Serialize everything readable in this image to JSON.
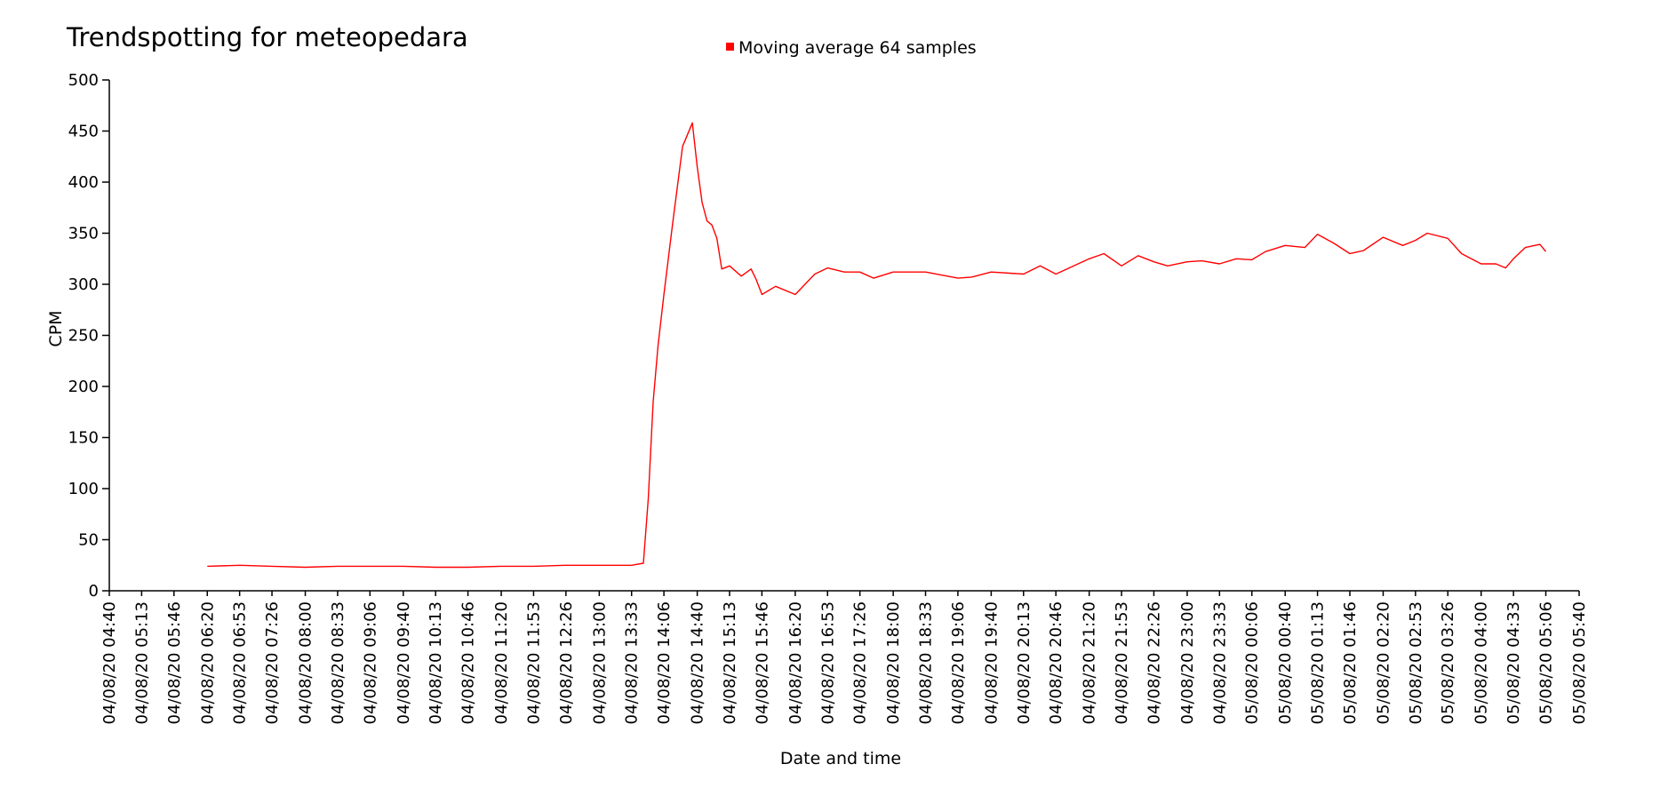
{
  "chart_data": {
    "type": "line",
    "title": "Trendspotting for meteopedara",
    "xlabel": "Date and time",
    "ylabel": "CPM",
    "ylim": [
      0,
      500
    ],
    "yticks": [
      0,
      50,
      100,
      150,
      200,
      250,
      300,
      350,
      400,
      450,
      500
    ],
    "xticks": [
      "04/08/20 04:40",
      "04/08/20 05:13",
      "04/08/20 05:46",
      "04/08/20 06:20",
      "04/08/20 06:53",
      "04/08/20 07:26",
      "04/08/20 08:00",
      "04/08/20 08:33",
      "04/08/20 09:06",
      "04/08/20 09:40",
      "04/08/20 10:13",
      "04/08/20 10:46",
      "04/08/20 11:20",
      "04/08/20 11:53",
      "04/08/20 12:26",
      "04/08/20 13:00",
      "04/08/20 13:33",
      "04/08/20 14:06",
      "04/08/20 14:40",
      "04/08/20 15:13",
      "04/08/20 15:46",
      "04/08/20 16:20",
      "04/08/20 16:53",
      "04/08/20 17:26",
      "04/08/20 18:00",
      "04/08/20 18:33",
      "04/08/20 19:06",
      "04/08/20 19:40",
      "04/08/20 20:13",
      "04/08/20 20:46",
      "04/08/20 21:20",
      "04/08/20 21:53",
      "04/08/20 22:26",
      "04/08/20 23:00",
      "04/08/20 23:33",
      "05/08/20 00:06",
      "05/08/20 00:40",
      "05/08/20 01:13",
      "05/08/20 01:46",
      "05/08/20 02:20",
      "05/08/20 02:53",
      "05/08/20 03:26",
      "05/08/20 04:00",
      "05/08/20 04:33",
      "05/08/20 05:06",
      "05/08/20 05:40"
    ],
    "legend": "top-center",
    "grid": false,
    "series": [
      {
        "name": "Moving average 64 samples",
        "color": "#ff0000",
        "x": [
          "04/08/20 06:20",
          "04/08/20 06:53",
          "04/08/20 07:26",
          "04/08/20 08:00",
          "04/08/20 08:33",
          "04/08/20 09:06",
          "04/08/20 09:40",
          "04/08/20 10:13",
          "04/08/20 10:46",
          "04/08/20 11:20",
          "04/08/20 11:53",
          "04/08/20 12:26",
          "04/08/20 13:00",
          "04/08/20 13:33",
          "04/08/20 13:45",
          "04/08/20 13:50",
          "04/08/20 13:55",
          "04/08/20 14:00",
          "04/08/20 14:06",
          "04/08/20 14:15",
          "04/08/20 14:25",
          "04/08/20 14:35",
          "04/08/20 14:40",
          "04/08/20 14:45",
          "04/08/20 14:50",
          "04/08/20 14:55",
          "04/08/20 15:00",
          "04/08/20 15:05",
          "04/08/20 15:13",
          "04/08/20 15:25",
          "04/08/20 15:35",
          "04/08/20 15:40",
          "04/08/20 15:46",
          "04/08/20 16:00",
          "04/08/20 16:20",
          "04/08/20 16:40",
          "04/08/20 16:53",
          "04/08/20 17:10",
          "04/08/20 17:26",
          "04/08/20 17:40",
          "04/08/20 18:00",
          "04/08/20 18:20",
          "04/08/20 18:33",
          "04/08/20 19:06",
          "04/08/20 19:20",
          "04/08/20 19:40",
          "04/08/20 20:13",
          "04/08/20 20:30",
          "04/08/20 20:46",
          "04/08/20 21:20",
          "04/08/20 21:35",
          "04/08/20 21:53",
          "04/08/20 22:10",
          "04/08/20 22:26",
          "04/08/20 22:40",
          "04/08/20 23:00",
          "04/08/20 23:15",
          "04/08/20 23:33",
          "04/08/20 23:50",
          "05/08/20 00:06",
          "05/08/20 00:20",
          "05/08/20 00:40",
          "05/08/20 01:00",
          "05/08/20 01:13",
          "05/08/20 01:30",
          "05/08/20 01:46",
          "05/08/20 02:00",
          "05/08/20 02:20",
          "05/08/20 02:40",
          "05/08/20 02:53",
          "05/08/20 03:05",
          "05/08/20 03:26",
          "05/08/20 03:40",
          "05/08/20 04:00",
          "05/08/20 04:15",
          "05/08/20 04:25",
          "05/08/20 04:33",
          "05/08/20 04:45",
          "05/08/20 05:00",
          "05/08/20 05:06"
        ],
        "y": [
          24,
          25,
          24,
          23,
          24,
          24,
          24,
          23,
          23,
          24,
          24,
          25,
          25,
          25,
          27,
          90,
          185,
          240,
          290,
          360,
          435,
          458,
          415,
          380,
          362,
          358,
          345,
          315,
          318,
          308,
          315,
          305,
          290,
          298,
          290,
          310,
          316,
          312,
          312,
          306,
          312,
          312,
          312,
          306,
          307,
          312,
          310,
          318,
          310,
          325,
          330,
          318,
          328,
          322,
          318,
          322,
          323,
          320,
          325,
          324,
          332,
          338,
          336,
          349,
          340,
          330,
          333,
          346,
          338,
          343,
          350,
          345,
          330,
          320,
          320,
          316,
          325,
          336,
          339,
          332
        ]
      }
    ]
  }
}
